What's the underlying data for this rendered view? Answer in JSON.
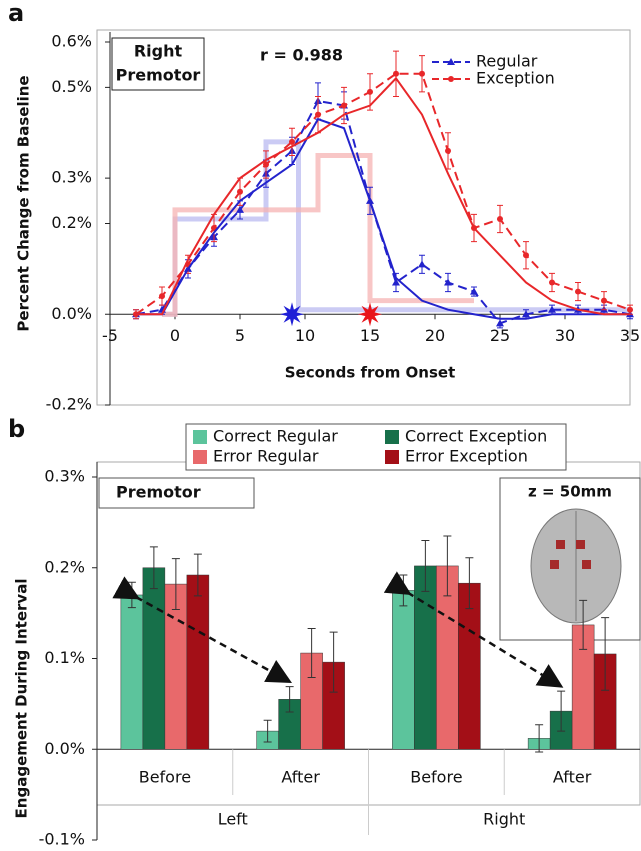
{
  "chart_data": [
    {
      "type": "line",
      "panel": "a",
      "label_box": [
        "Right",
        "Premotor"
      ],
      "annotation": "r = 0.988",
      "xlabel": "Seconds from Onset",
      "ylabel": "Percent Change from Baseline",
      "xlim": [
        -5,
        35
      ],
      "ylim": [
        -0.2,
        0.6
      ],
      "xticks": [
        -5,
        0,
        5,
        10,
        15,
        20,
        25,
        30,
        35
      ],
      "yticks": [
        {
          "value": 0.6,
          "label": "0.6%"
        },
        {
          "value": 0.5,
          "label": "0.5%"
        },
        {
          "value": 0.3,
          "label": "0.3%"
        },
        {
          "value": 0.2,
          "label": "0.2%"
        },
        {
          "value": 0.0,
          "label": "0.0%"
        },
        {
          "value": -0.2,
          "label": "-0.2%"
        }
      ],
      "legend": "upper right",
      "x": [
        -3,
        -1,
        1,
        3,
        5,
        7,
        9,
        11,
        13,
        15,
        17,
        19,
        21,
        23,
        25,
        27,
        29,
        31,
        33,
        35
      ],
      "series": [
        {
          "name": "Regular",
          "color": "#2323cc",
          "style": "dashed",
          "marker": "triangle",
          "values": [
            0.0,
            0.01,
            0.1,
            0.17,
            0.23,
            0.31,
            0.36,
            0.47,
            0.46,
            0.25,
            0.07,
            0.11,
            0.07,
            0.05,
            -0.02,
            0.0,
            0.01,
            0.01,
            0.01,
            0.0
          ],
          "errors": [
            0.01,
            0.01,
            0.02,
            0.02,
            0.02,
            0.03,
            0.03,
            0.04,
            0.03,
            0.03,
            0.02,
            0.02,
            0.02,
            0.01,
            0.01,
            0.01,
            0.01,
            0.01,
            0.01,
            0.01
          ]
        },
        {
          "name": "Exception",
          "color": "#e8272a",
          "style": "dashed",
          "marker": "circle",
          "values": [
            0.0,
            0.04,
            0.11,
            0.19,
            0.27,
            0.33,
            0.38,
            0.44,
            0.46,
            0.49,
            0.53,
            0.53,
            0.36,
            0.19,
            0.21,
            0.13,
            0.07,
            0.05,
            0.03,
            0.01
          ],
          "errors": [
            0.01,
            0.02,
            0.02,
            0.03,
            0.03,
            0.03,
            0.03,
            0.04,
            0.04,
            0.04,
            0.05,
            0.04,
            0.04,
            0.03,
            0.03,
            0.03,
            0.02,
            0.02,
            0.02,
            0.01
          ]
        },
        {
          "color": "#2323cc",
          "style": "solid",
          "values": [
            0.0,
            0.0,
            0.1,
            0.18,
            0.25,
            0.29,
            0.33,
            0.43,
            0.41,
            0.25,
            0.08,
            0.03,
            0.01,
            0.0,
            -0.01,
            -0.01,
            0.0,
            0.0,
            0.0,
            0.0
          ]
        },
        {
          "color": "#e8272a",
          "style": "solid",
          "values": [
            0.0,
            0.0,
            0.12,
            0.22,
            0.3,
            0.34,
            0.37,
            0.4,
            0.44,
            0.46,
            0.52,
            0.44,
            0.31,
            0.19,
            0.13,
            0.07,
            0.03,
            0.01,
            0.0,
            0.0
          ]
        },
        {
          "color": "#b9b9f0",
          "style": "step",
          "x": [
            -1,
            0,
            0,
            7,
            7,
            9.5,
            9.5,
            35
          ],
          "values": [
            0,
            0,
            0.21,
            0.21,
            0.38,
            0.38,
            0.01,
            0.01
          ]
        },
        {
          "color": "#f5b3b3",
          "style": "step",
          "x": [
            -1,
            0,
            0,
            11,
            11,
            15,
            15,
            23
          ],
          "values": [
            0,
            0,
            0.23,
            0.23,
            0.35,
            0.35,
            0.03,
            0.03
          ]
        }
      ],
      "stars": [
        {
          "x": 9,
          "color": "#1f1fd6"
        },
        {
          "x": 15,
          "color": "#e8141a"
        }
      ]
    },
    {
      "type": "bar",
      "panel": "b",
      "annotation": "Premotor",
      "inset": "z = 50mm",
      "ylabel": "Engagement During Interval",
      "ylim": [
        -0.1,
        0.3
      ],
      "yticks": [
        {
          "value": 0.3,
          "label": "0.3%"
        },
        {
          "value": 0.2,
          "label": "0.2%"
        },
        {
          "value": 0.1,
          "label": "0.1%"
        },
        {
          "value": 0.0,
          "label": "0.0%"
        },
        {
          "value": -0.1,
          "label": "-0.1%"
        }
      ],
      "categories": [
        "Before",
        "After",
        "Before",
        "After"
      ],
      "groups": [
        "Left",
        "Right"
      ],
      "series": [
        {
          "name": "Correct Regular",
          "color": "#5cc49c",
          "values": [
            0.17,
            0.02,
            0.175,
            0.012
          ],
          "errors": [
            0.014,
            0.012,
            0.017,
            0.015
          ]
        },
        {
          "name": "Correct Exception",
          "color": "#17704a",
          "values": [
            0.2,
            0.055,
            0.202,
            0.042
          ],
          "errors": [
            0.023,
            0.014,
            0.028,
            0.022
          ]
        },
        {
          "name": "Error Regular",
          "color": "#e8696b",
          "values": [
            0.182,
            0.106,
            0.202,
            0.137
          ],
          "errors": [
            0.028,
            0.027,
            0.033,
            0.027
          ]
        },
        {
          "name": "Error Exception",
          "color": "#a30f17",
          "values": [
            0.192,
            0.096,
            0.183,
            0.105
          ],
          "errors": [
            0.023,
            0.033,
            0.028,
            0.04
          ]
        }
      ]
    }
  ]
}
